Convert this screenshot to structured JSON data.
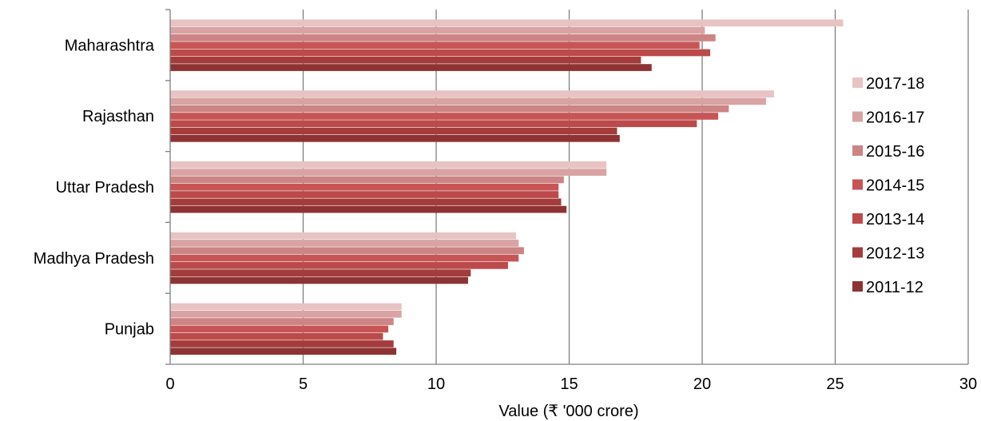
{
  "chart_data": {
    "type": "bar",
    "orientation": "horizontal",
    "categories": [
      "Maharashtra",
      "Rajasthan",
      "Uttar Pradesh",
      "Madhya Pradesh",
      "Punjab"
    ],
    "series": [
      {
        "name": "2017-18",
        "color": "#e8c3c3",
        "values": [
          25.3,
          22.7,
          16.4,
          13.0,
          8.7
        ]
      },
      {
        "name": "2016-17",
        "color": "#d9a3a3",
        "values": [
          20.1,
          22.4,
          16.4,
          13.1,
          8.7
        ]
      },
      {
        "name": "2015-16",
        "color": "#cd8484",
        "values": [
          20.5,
          21.0,
          14.8,
          13.3,
          8.4
        ]
      },
      {
        "name": "2014-15",
        "color": "#c85555",
        "values": [
          19.9,
          20.6,
          14.6,
          13.1,
          8.2
        ]
      },
      {
        "name": "2013-14",
        "color": "#bc4a4a",
        "values": [
          20.3,
          19.8,
          14.6,
          12.7,
          8.0
        ]
      },
      {
        "name": "2012-13",
        "color": "#a43c3c",
        "values": [
          17.7,
          16.8,
          14.7,
          11.3,
          8.4
        ]
      },
      {
        "name": "2011-12",
        "color": "#8e3333",
        "values": [
          18.1,
          16.9,
          14.9,
          11.2,
          8.5
        ]
      }
    ],
    "xlabel": "Value (₹ '000 crore)",
    "ylabel": "",
    "xlim": [
      0,
      30
    ],
    "x_ticks": [
      "0",
      "5",
      "10",
      "15",
      "20",
      "25",
      "30"
    ],
    "grid": true,
    "legend_position": "right"
  }
}
